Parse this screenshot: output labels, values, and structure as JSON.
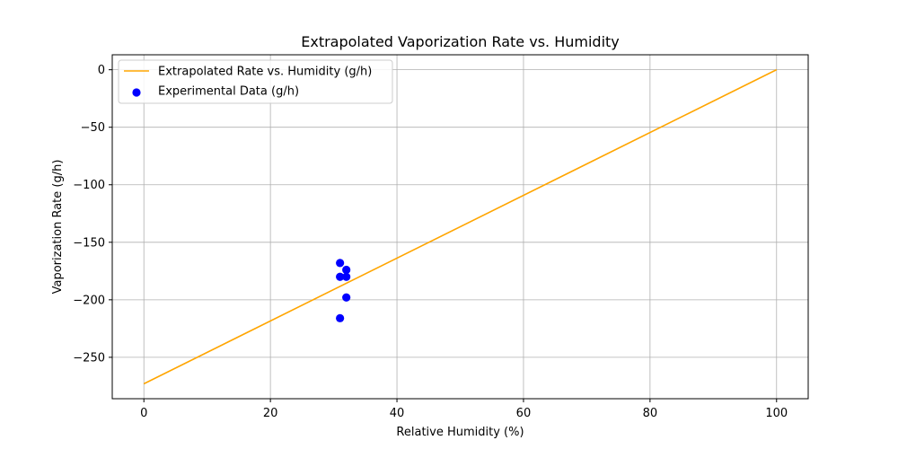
{
  "chart_data": {
    "type": "scatter",
    "title": "Extrapolated Vaporization Rate vs. Humidity",
    "xlabel": "Relative Humidity (%)",
    "ylabel": "Vaporization Rate (g/h)",
    "xlim": [
      -5,
      105
    ],
    "ylim": [
      -286,
      13
    ],
    "x_ticks": [
      0,
      20,
      40,
      60,
      80,
      100
    ],
    "y_ticks": [
      0,
      -50,
      -100,
      -150,
      -200,
      -250
    ],
    "x_tick_labels": [
      "0",
      "20",
      "40",
      "60",
      "80",
      "100"
    ],
    "y_tick_labels": [
      "0",
      "−50",
      "−100",
      "−150",
      "−200",
      "−250"
    ],
    "grid": true,
    "legend_position": "top-left",
    "series": [
      {
        "name": "Extrapolated Rate vs. Humidity (g/h)",
        "kind": "line",
        "color": "#ffa500",
        "x": [
          0,
          100
        ],
        "y": [
          -273,
          0
        ]
      },
      {
        "name": "Experimental Data (g/h)",
        "kind": "scatter",
        "color": "#0000ff",
        "x": [
          31,
          31,
          32,
          32,
          32,
          31
        ],
        "y": [
          -168,
          -180,
          -174,
          -180,
          -198,
          -216
        ]
      }
    ]
  }
}
